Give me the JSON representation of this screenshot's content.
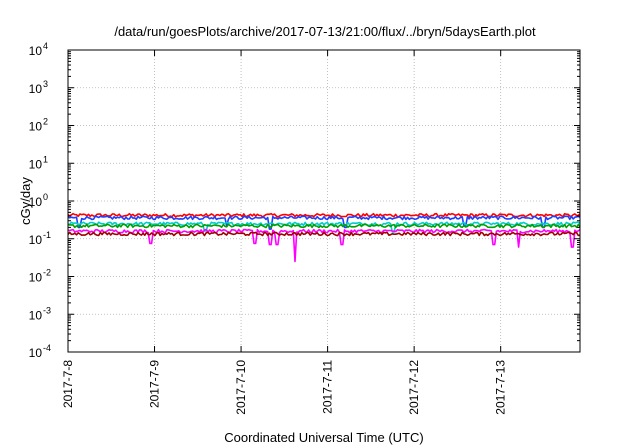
{
  "chart_data": {
    "type": "line",
    "title": "/data/run/goesPlots/archive/2017-07-13/21:00/flux/../bryn/5daysEarth.plot",
    "xlabel": "Coordinated Universal Time (UTC)",
    "ylabel": "cGy/day",
    "y_scale": "log",
    "ylim": [
      0.0001,
      10000
    ],
    "y_ticks": [
      {
        "value": 0.0001,
        "base": "10",
        "exp": "-4"
      },
      {
        "value": 0.001,
        "base": "10",
        "exp": "-3"
      },
      {
        "value": 0.01,
        "base": "10",
        "exp": "-2"
      },
      {
        "value": 0.1,
        "base": "10",
        "exp": "-1"
      },
      {
        "value": 1,
        "base": "10",
        "exp": "0"
      },
      {
        "value": 10,
        "base": "10",
        "exp": "1"
      },
      {
        "value": 100,
        "base": "10",
        "exp": "2"
      },
      {
        "value": 1000,
        "base": "10",
        "exp": "3"
      },
      {
        "value": 10000,
        "base": "10",
        "exp": "4"
      }
    ],
    "x_range": [
      "2017-07-08T00:00",
      "2017-07-13T22:00"
    ],
    "x_ticks": [
      "2017-7-8",
      "2017-7-9",
      "2017-7-10",
      "2017-7-11",
      "2017-7-12",
      "2017-7-13"
    ],
    "x_tick_dates": [
      "2017-07-08",
      "2017-07-09",
      "2017-07-10",
      "2017-07-11",
      "2017-07-12",
      "2017-07-13"
    ],
    "grid": true,
    "series": [
      {
        "color": "#ff0000",
        "level": 0.42,
        "dips": []
      },
      {
        "color": "#1f3fff",
        "level": 0.36,
        "dips": [
          [
            "2017-07-08T03:00",
            0.2
          ],
          [
            "2017-07-09T20:00",
            0.22
          ],
          [
            "2017-07-10T08:00",
            0.18
          ],
          [
            "2017-07-11T05:00",
            0.2
          ],
          [
            "2017-07-12T14:00",
            0.22
          ],
          [
            "2017-07-13T12:00",
            0.2
          ]
        ]
      },
      {
        "color": "#00cccc",
        "level": 0.25,
        "dips": [
          [
            "2017-07-09T14:00",
            0.16
          ],
          [
            "2017-07-11T18:00",
            0.15
          ]
        ]
      },
      {
        "color": "#00a000",
        "level": 0.22,
        "dips": []
      },
      {
        "color": "#ff00ff",
        "level": 0.16,
        "dips": [
          [
            "2017-07-08T23:00",
            0.075
          ],
          [
            "2017-07-10T04:00",
            0.075
          ],
          [
            "2017-07-10T08:00",
            0.07
          ],
          [
            "2017-07-10T10:00",
            0.07
          ],
          [
            "2017-07-10T15:00",
            0.025
          ],
          [
            "2017-07-11T04:00",
            0.07
          ],
          [
            "2017-07-12T22:00",
            0.07
          ],
          [
            "2017-07-13T05:00",
            0.06
          ],
          [
            "2017-07-13T20:00",
            0.06
          ]
        ]
      },
      {
        "color": "#a00000",
        "level": 0.135,
        "dips": []
      }
    ]
  }
}
